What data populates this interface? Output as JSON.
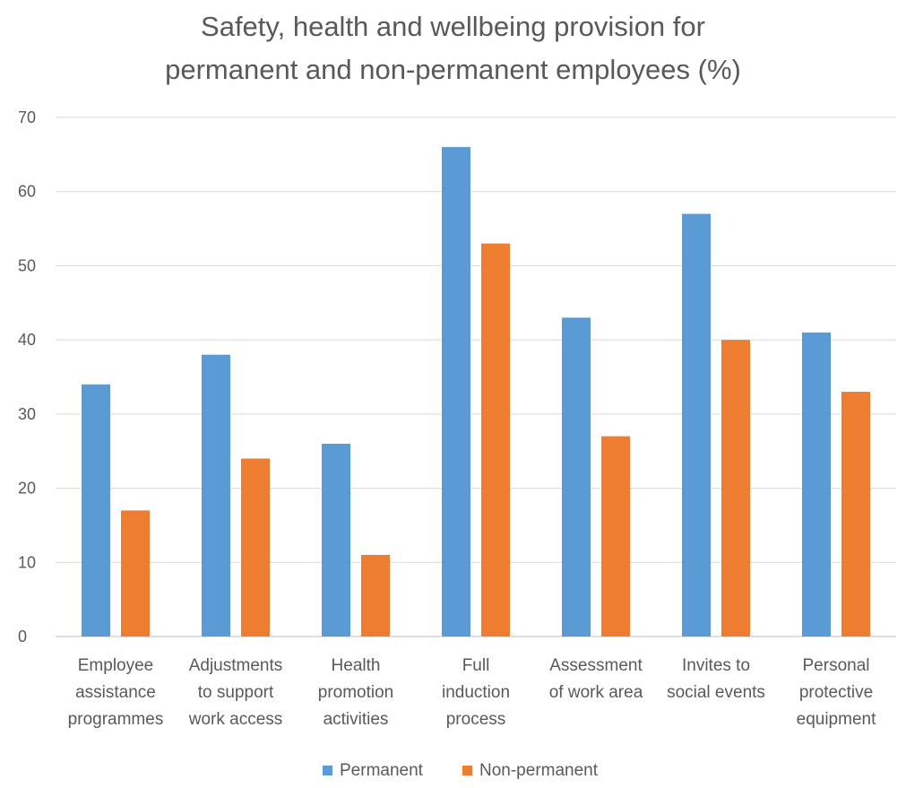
{
  "chart_data": {
    "type": "bar",
    "title": [
      "Safety, health and wellbeing provision for",
      "permanent and non-permanent employees (%)"
    ],
    "categories": [
      [
        "Employee",
        "assistance",
        "programmes"
      ],
      [
        "Adjustments",
        "to support",
        "work access"
      ],
      [
        "Health",
        "promotion",
        "activities"
      ],
      [
        "Full",
        "induction",
        "process"
      ],
      [
        "Assessment",
        "of work area"
      ],
      [
        "Invites to",
        "social events"
      ],
      [
        "Personal",
        "protective",
        "equipment"
      ]
    ],
    "series": [
      {
        "name": "Permanent",
        "color": "#5B9BD5",
        "values": [
          34,
          38,
          26,
          66,
          43,
          57,
          41
        ]
      },
      {
        "name": "Non-permanent",
        "color": "#ED7D31",
        "values": [
          17,
          24,
          11,
          53,
          27,
          40,
          33
        ]
      }
    ],
    "ylim": [
      0,
      70
    ],
    "yticks": [
      0,
      10,
      20,
      30,
      40,
      50,
      60,
      70
    ],
    "grid": true,
    "legend": "bottom"
  }
}
